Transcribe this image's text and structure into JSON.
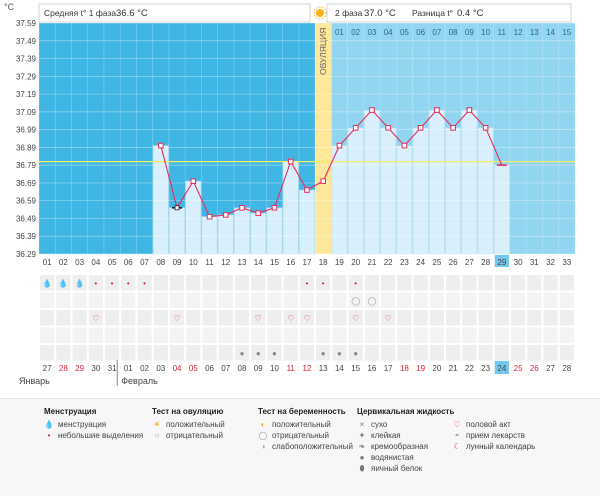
{
  "header": {
    "unit": "°C",
    "phase1_label": "Средняя t° 1 фаза",
    "phase1_value": "36.6 °C",
    "phase2_label": "2 фаза",
    "phase2_value": "37.0 °C",
    "diff_label": "Разница t°",
    "diff_value": "0.4 °C"
  },
  "ovulation_label": "ОВУЛЯЦИЯ",
  "highlight_day": 29,
  "highlight_date": 24,
  "months": {
    "jan": "Январь",
    "feb": "Февраль"
  },
  "top_days": [
    "01",
    "02",
    "03",
    "04",
    "05",
    "06",
    "07",
    "08",
    "09",
    "10",
    "11",
    "12",
    "13",
    "14",
    "15"
  ],
  "chart_data": {
    "type": "line",
    "y_ticks": [
      "37.59",
      "37.49",
      "37.39",
      "37.29",
      "37.19",
      "37.09",
      "36.99",
      "36.89",
      "36.79",
      "36.69",
      "36.59",
      "36.49",
      "36.39",
      "36.29"
    ],
    "ylim": [
      36.29,
      37.59
    ],
    "days": [
      1,
      2,
      3,
      4,
      5,
      6,
      7,
      8,
      9,
      10,
      11,
      12,
      13,
      14,
      15,
      16,
      17,
      18,
      19,
      20,
      21,
      22,
      23,
      24,
      25,
      26,
      27,
      28,
      29,
      30,
      31,
      32,
      33
    ],
    "dates": [
      {
        "v": "27",
        "red": false
      },
      {
        "v": "28",
        "red": true
      },
      {
        "v": "29",
        "red": true
      },
      {
        "v": "30",
        "red": false
      },
      {
        "v": "31",
        "red": false
      },
      {
        "v": "01",
        "red": false
      },
      {
        "v": "02",
        "red": false
      },
      {
        "v": "03",
        "red": false
      },
      {
        "v": "04",
        "red": true
      },
      {
        "v": "05",
        "red": true
      },
      {
        "v": "06",
        "red": false
      },
      {
        "v": "07",
        "red": false
      },
      {
        "v": "08",
        "red": false
      },
      {
        "v": "09",
        "red": false
      },
      {
        "v": "10",
        "red": false
      },
      {
        "v": "11",
        "red": true
      },
      {
        "v": "12",
        "red": true
      },
      {
        "v": "13",
        "red": false
      },
      {
        "v": "14",
        "red": false
      },
      {
        "v": "15",
        "red": false
      },
      {
        "v": "16",
        "red": false
      },
      {
        "v": "17",
        "red": false
      },
      {
        "v": "18",
        "red": true
      },
      {
        "v": "19",
        "red": true
      },
      {
        "v": "20",
        "red": false
      },
      {
        "v": "21",
        "red": false
      },
      {
        "v": "22",
        "red": false
      },
      {
        "v": "23",
        "red": false
      },
      {
        "v": "24",
        "red": false
      },
      {
        "v": "25",
        "red": true
      },
      {
        "v": "26",
        "red": true
      },
      {
        "v": "27",
        "red": false
      },
      {
        "v": "28",
        "red": false
      }
    ],
    "series": [
      {
        "values": [
          {
            "day": 8,
            "t": 36.9,
            "mark": "square"
          },
          {
            "day": 9,
            "t": 36.55,
            "mark": "dash"
          },
          {
            "day": 10,
            "t": 36.7,
            "mark": "square"
          },
          {
            "day": 11,
            "t": 36.5,
            "mark": "square"
          },
          {
            "day": 12,
            "t": 36.51,
            "mark": "square"
          },
          {
            "day": 13,
            "t": 36.55,
            "mark": "square"
          },
          {
            "day": 14,
            "t": 36.52,
            "mark": "square"
          },
          {
            "day": 15,
            "t": 36.55,
            "mark": "square"
          },
          {
            "day": 16,
            "t": 36.81,
            "mark": "square"
          },
          {
            "day": 17,
            "t": 36.65,
            "mark": "square"
          },
          {
            "day": 18,
            "t": 36.7,
            "mark": "square"
          },
          {
            "day": 19,
            "t": 36.9,
            "mark": "square"
          },
          {
            "day": 20,
            "t": 37.0,
            "mark": "square"
          },
          {
            "day": 21,
            "t": 37.1,
            "mark": "square"
          },
          {
            "day": 22,
            "t": 37.0,
            "mark": "square"
          },
          {
            "day": 23,
            "t": 36.9,
            "mark": "square"
          },
          {
            "day": 24,
            "t": 37.0,
            "mark": "square"
          },
          {
            "day": 25,
            "t": 37.1,
            "mark": "square"
          },
          {
            "day": 26,
            "t": 37.0,
            "mark": "square"
          },
          {
            "day": 27,
            "t": 37.1,
            "mark": "square"
          },
          {
            "day": 28,
            "t": 37.0,
            "mark": "square"
          },
          {
            "day": 29,
            "t": 36.79,
            "mark": "dash"
          }
        ]
      }
    ],
    "ovulation_day": 18,
    "coverline": 36.81,
    "colors": {
      "phase1_bg": "#40b6e4",
      "phase2_bg": "#91d5f1",
      "bar_fill": "#d9effb",
      "line": "#e52e5c",
      "ovulation": "#fde79a",
      "coverline": "#f3ee5c"
    }
  },
  "symbol_rows": [
    {
      "row": 0,
      "days": [
        1,
        2,
        3
      ],
      "icon": "menstruation-icon",
      "glyph": "💧",
      "color": "#d81f5f"
    },
    {
      "row": 0,
      "days": [
        4,
        5,
        6,
        7,
        17,
        18,
        20
      ],
      "icon": "light-spotting-icon",
      "glyph": "•",
      "color": "#d81f5f"
    },
    {
      "row": 1,
      "days": [
        20,
        21
      ],
      "icon": "pregnancy-test-negative-icon",
      "glyph": "◯",
      "color": "#999999"
    },
    {
      "row": 2,
      "days": [
        4,
        9,
        14,
        16,
        17,
        22,
        20
      ],
      "icon": "sex-icon",
      "glyph": "♡",
      "color": "#d81f5f"
    },
    {
      "row": 4,
      "days": [
        13,
        14,
        15
      ],
      "icon": "cervical-fluid-icon",
      "glyph": "●",
      "color": "#888888"
    },
    {
      "row": 4,
      "days": [
        18,
        19,
        20
      ],
      "icon": "cervical-fluid-icon",
      "glyph": "●",
      "color": "#888888"
    }
  ],
  "legend": [
    {
      "title": "Менструация",
      "items": [
        {
          "icon": "menstruation-icon",
          "glyph": "💧",
          "color": "#d81f5f",
          "label": "менструация"
        },
        {
          "icon": "light-spotting-icon",
          "glyph": "•",
          "color": "#d81f5f",
          "label": "небольшие выделения"
        }
      ]
    },
    {
      "title": "Тест на овуляцию",
      "items": [
        {
          "icon": "ovulation-test-positive-icon",
          "glyph": "☀",
          "color": "#f0a21c",
          "label": "положительный"
        },
        {
          "icon": "ovulation-test-negative-icon",
          "glyph": "○",
          "color": "#999999",
          "label": "отрицательный"
        }
      ]
    },
    {
      "title": "Тест на беременность",
      "items": [
        {
          "icon": "pregnancy-test-positive-icon",
          "glyph": "◐",
          "color": "#f0a21c",
          "label": "положительный"
        },
        {
          "icon": "pregnancy-test-negative-icon",
          "glyph": "◯",
          "color": "#999999",
          "label": "отрицательный"
        },
        {
          "icon": "pregnancy-test-weak-icon",
          "glyph": "◑",
          "color": "#aaaaaa",
          "label": "слабоположительный"
        }
      ]
    },
    {
      "title": "Цервикальная жидкость",
      "items": [
        {
          "icon": "dry-icon",
          "glyph": "×",
          "color": "#777777",
          "label": "сухо"
        },
        {
          "icon": "sticky-icon",
          "glyph": "✦",
          "color": "#777777",
          "label": "клейкая"
        },
        {
          "icon": "creamy-icon",
          "glyph": "❧",
          "color": "#777777",
          "label": "кремообразная"
        },
        {
          "icon": "watery-icon",
          "glyph": "●",
          "color": "#777777",
          "label": "водянистая"
        },
        {
          "icon": "egg-white-icon",
          "glyph": "⬮",
          "color": "#777777",
          "label": "яичный белок"
        }
      ]
    },
    {
      "title": "",
      "items": [
        {
          "icon": "sex-icon",
          "glyph": "♡",
          "color": "#d81f5f",
          "label": "половой акт"
        },
        {
          "icon": "medication-icon",
          "glyph": "◓",
          "color": "#999999",
          "label": "прием лекарств"
        },
        {
          "icon": "lunar-calendar-icon",
          "glyph": "☾",
          "color": "#d81f5f",
          "label": "лунный календарь"
        }
      ]
    }
  ]
}
